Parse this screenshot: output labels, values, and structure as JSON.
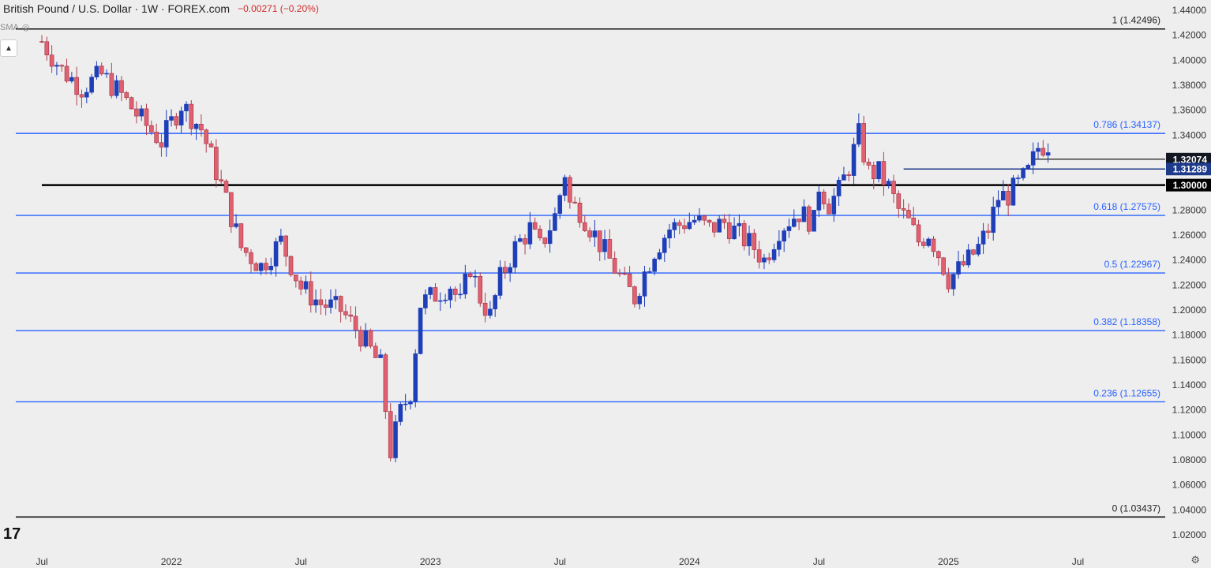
{
  "header": {
    "title": "British Pound / U.S. Dollar · 1W · FOREX.com",
    "change": "−0.00271 (−0.20%)"
  },
  "indicator": {
    "label": "SMA"
  },
  "logo": "17",
  "chart_data": {
    "type": "candlestick",
    "ylim": [
      1.015,
      1.445
    ],
    "y_ticks": [
      "1.44000",
      "1.42000",
      "1.40000",
      "1.38000",
      "1.36000",
      "1.34000",
      "1.32000",
      "1.30000",
      "1.28000",
      "1.26000",
      "1.24000",
      "1.22000",
      "1.20000",
      "1.18000",
      "1.16000",
      "1.14000",
      "1.12000",
      "1.10000",
      "1.08000",
      "1.06000",
      "1.04000",
      "1.02000"
    ],
    "x_labels": [
      {
        "label": "Jul",
        "week": 0
      },
      {
        "label": "2022",
        "week": 26
      },
      {
        "label": "Jul",
        "week": 52
      },
      {
        "label": "2023",
        "week": 78
      },
      {
        "label": "Jul",
        "week": 104
      },
      {
        "label": "2024",
        "week": 130
      },
      {
        "label": "Jul",
        "week": 156
      },
      {
        "label": "2025",
        "week": 182
      },
      {
        "label": "Jul",
        "week": 208
      }
    ],
    "fib_levels": [
      {
        "label": "1 (1.42496)",
        "value": 1.42496,
        "color": "#111111"
      },
      {
        "label": "0.786 (1.34137)",
        "value": 1.34137,
        "color": "#2962ff"
      },
      {
        "label": "0.618 (1.27575)",
        "value": 1.27575,
        "color": "#2962ff"
      },
      {
        "label": "0.5 (1.22967)",
        "value": 1.22967,
        "color": "#2962ff"
      },
      {
        "label": "0.382 (1.18358)",
        "value": 1.18358,
        "color": "#2962ff"
      },
      {
        "label": "0.236 (1.12655)",
        "value": 1.12655,
        "color": "#2962ff"
      },
      {
        "label": "0 (1.03437)",
        "value": 1.03437,
        "color": "#111111"
      }
    ],
    "price_tags": [
      {
        "label": "1.32074",
        "value": 1.32074,
        "bg": "#131722"
      },
      {
        "label": "1.31289",
        "value": 1.31289,
        "bg": "#1e3a8a"
      },
      {
        "label": "1.30000",
        "value": 1.3,
        "bg": "#000000"
      }
    ],
    "ref_lines": [
      {
        "value": 1.3,
        "color": "#000000",
        "width": 2.5,
        "from_week": 0
      },
      {
        "value": 1.31289,
        "color": "#1e3a8a",
        "width": 1.5,
        "from_week": 173
      },
      {
        "value": 1.32074,
        "color": "#000000",
        "width": 1.2,
        "from_week": 199
      }
    ],
    "close_path": [
      [
        0,
        1.415
      ],
      [
        4,
        1.392
      ],
      [
        8,
        1.378
      ],
      [
        12,
        1.388
      ],
      [
        16,
        1.372
      ],
      [
        20,
        1.352
      ],
      [
        24,
        1.335
      ],
      [
        28,
        1.365
      ],
      [
        32,
        1.345
      ],
      [
        36,
        1.3
      ],
      [
        40,
        1.25
      ],
      [
        44,
        1.235
      ],
      [
        48,
        1.255
      ],
      [
        52,
        1.218
      ],
      [
        56,
        1.205
      ],
      [
        60,
        1.2
      ],
      [
        64,
        1.18
      ],
      [
        68,
        1.155
      ],
      [
        70,
        1.087
      ],
      [
        72,
        1.118
      ],
      [
        74,
        1.135
      ],
      [
        76,
        1.205
      ],
      [
        78,
        1.21
      ],
      [
        82,
        1.22
      ],
      [
        84,
        1.205
      ],
      [
        86,
        1.235
      ],
      [
        88,
        1.21
      ],
      [
        90,
        1.195
      ],
      [
        92,
        1.225
      ],
      [
        95,
        1.25
      ],
      [
        98,
        1.265
      ],
      [
        100,
        1.25
      ],
      [
        103,
        1.275
      ],
      [
        105,
        1.31
      ],
      [
        106,
        1.285
      ],
      [
        108,
        1.28
      ],
      [
        111,
        1.26
      ],
      [
        114,
        1.24
      ],
      [
        117,
        1.22
      ],
      [
        119,
        1.21
      ],
      [
        121,
        1.23
      ],
      [
        123,
        1.248
      ],
      [
        126,
        1.265
      ],
      [
        129,
        1.27
      ],
      [
        131,
        1.272
      ],
      [
        134,
        1.265
      ],
      [
        137,
        1.27
      ],
      [
        140,
        1.26
      ],
      [
        143,
        1.25
      ],
      [
        145,
        1.24
      ],
      [
        148,
        1.265
      ],
      [
        150,
        1.272
      ],
      [
        152,
        1.278
      ],
      [
        155,
        1.27
      ],
      [
        156,
        1.3
      ],
      [
        158,
        1.285
      ],
      [
        160,
        1.295
      ],
      [
        162,
        1.315
      ],
      [
        164,
        1.34
      ],
      [
        166,
        1.31
      ],
      [
        168,
        1.31
      ],
      [
        170,
        1.298
      ],
      [
        172,
        1.28
      ],
      [
        174,
        1.27
      ],
      [
        176,
        1.255
      ],
      [
        178,
        1.262
      ],
      [
        180,
        1.245
      ],
      [
        182,
        1.225
      ],
      [
        184,
        1.232
      ],
      [
        186,
        1.24
      ],
      [
        188,
        1.25
      ],
      [
        190,
        1.265
      ],
      [
        192,
        1.29
      ],
      [
        194,
        1.292
      ],
      [
        196,
        1.3
      ],
      [
        198,
        1.31
      ],
      [
        200,
        1.33
      ],
      [
        201,
        1.332
      ],
      [
        202,
        1.326
      ]
    ]
  }
}
